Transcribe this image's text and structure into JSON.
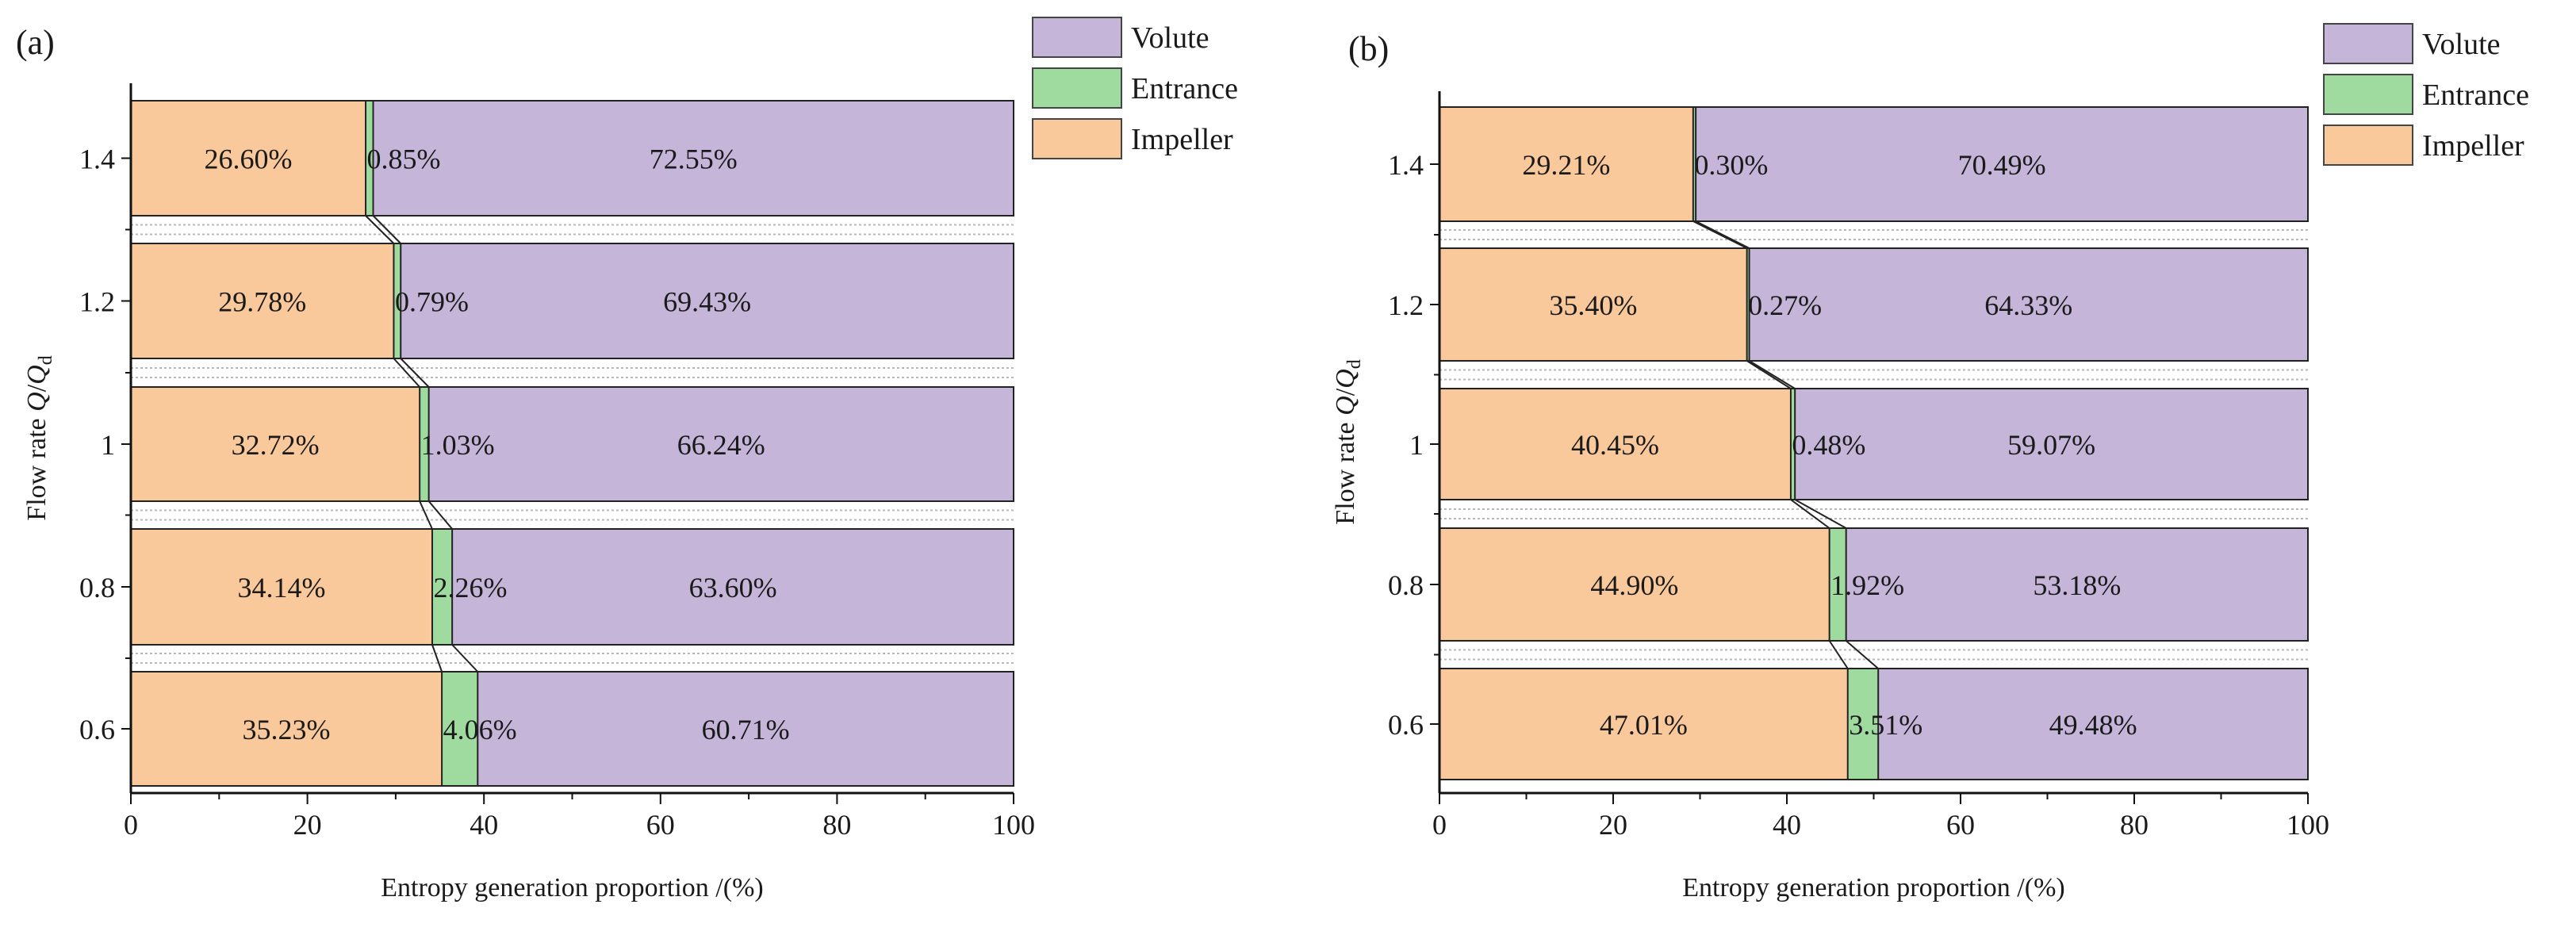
{
  "figure": {
    "xlabel": "Entropy generation proportion /(%)",
    "ylabel_prefix": "Flow rate ",
    "ylabel_Q": "Q",
    "ylabel_slash": "/",
    "ylabel_sub": "d",
    "xlim": [
      0,
      100
    ],
    "xticks": [
      "0",
      "20",
      "40",
      "60",
      "80",
      "100"
    ],
    "legend": [
      {
        "name": "Volute",
        "color": "#c4b5d9"
      },
      {
        "name": "Entrance",
        "color": "#9fdb9f"
      },
      {
        "name": "Impeller",
        "color": "#f9c89b"
      }
    ]
  },
  "chart_data": [
    {
      "type": "bar",
      "orientation": "horizontal",
      "stacked": true,
      "panel": "(a)",
      "categories": [
        "1.4",
        "1.2",
        "1",
        "0.8",
        "0.6"
      ],
      "series": [
        {
          "name": "Impeller",
          "color": "#f9c89b",
          "values": [
            26.6,
            29.78,
            32.72,
            34.14,
            35.23
          ],
          "labels": [
            "26.60%",
            "29.78%",
            "32.72%",
            "34.14%",
            "35.23%"
          ]
        },
        {
          "name": "Entrance",
          "color": "#9fdb9f",
          "values": [
            0.85,
            0.79,
            1.03,
            2.26,
            4.06
          ],
          "labels": [
            "0.85%",
            "0.79%",
            "1.03%",
            "2.26%",
            "4.06%"
          ]
        },
        {
          "name": "Volute",
          "color": "#c4b5d9",
          "values": [
            72.55,
            69.43,
            66.24,
            63.6,
            60.71
          ],
          "labels": [
            "72.55%",
            "69.43%",
            "66.24%",
            "63.60%",
            "60.71%"
          ]
        }
      ],
      "xlabel": "Entropy generation proportion /(%)",
      "ylabel": "Flow rate Q/Qd",
      "xlim": [
        0,
        100
      ]
    },
    {
      "type": "bar",
      "orientation": "horizontal",
      "stacked": true,
      "panel": "(b)",
      "categories": [
        "1.4",
        "1.2",
        "1",
        "0.8",
        "0.6"
      ],
      "series": [
        {
          "name": "Impeller",
          "color": "#f9c89b",
          "values": [
            29.21,
            35.4,
            40.45,
            44.9,
            47.01
          ],
          "labels": [
            "29.21%",
            "35.40%",
            "40.45%",
            "44.90%",
            "47.01%"
          ]
        },
        {
          "name": "Entrance",
          "color": "#9fdb9f",
          "values": [
            0.3,
            0.27,
            0.48,
            1.92,
            3.51
          ],
          "labels": [
            "0.30%",
            "0.27%",
            "0.48%",
            "1.92%",
            "3.51%"
          ]
        },
        {
          "name": "Volute",
          "color": "#c4b5d9",
          "values": [
            70.49,
            64.33,
            59.07,
            53.18,
            49.48
          ],
          "labels": [
            "70.49%",
            "64.33%",
            "59.07%",
            "53.18%",
            "49.48%"
          ]
        }
      ],
      "xlabel": "Entropy generation proportion /(%)",
      "ylabel": "Flow rate Q/Qd",
      "xlim": [
        0,
        100
      ]
    }
  ]
}
